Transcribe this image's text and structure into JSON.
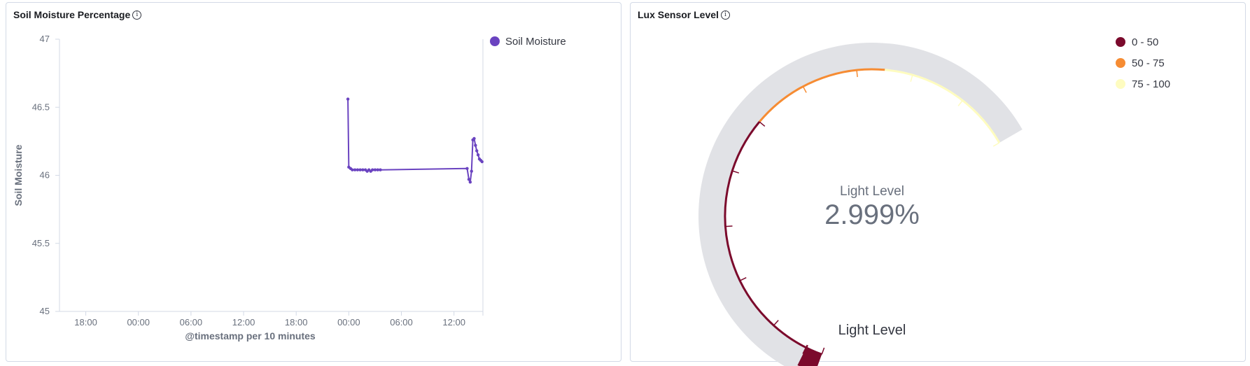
{
  "panels": {
    "soil": {
      "title": "Soil Moisture Percentage",
      "info_icon": "info-icon"
    },
    "lux": {
      "title": "Lux Sensor Level",
      "info_icon": "info-icon"
    }
  },
  "chart_data": [
    {
      "type": "line",
      "title": "Soil Moisture Percentage",
      "xlabel": "@timestamp per 10 minutes",
      "ylabel": "Soil Moisture",
      "ylim": [
        45,
        47
      ],
      "y_ticks": [
        "45",
        "45.5",
        "46",
        "46.5",
        "47"
      ],
      "x_ticks": [
        "18:00",
        "00:00",
        "06:00",
        "12:00",
        "18:00",
        "00:00",
        "06:00",
        "12:00"
      ],
      "x_tick_hours": [
        0,
        6,
        12,
        18,
        24,
        30,
        36,
        42
      ],
      "xlim_hours": [
        -3,
        45.3
      ],
      "grid": false,
      "legend_position": "right",
      "series": [
        {
          "name": "Soil Moisture",
          "color": "#6a43c0",
          "points": [
            [
              29.9,
              46.56
            ],
            [
              30.0,
              46.06
            ],
            [
              30.2,
              46.05
            ],
            [
              30.4,
              46.04
            ],
            [
              30.7,
              46.04
            ],
            [
              31.0,
              46.04
            ],
            [
              31.3,
              46.04
            ],
            [
              31.6,
              46.04
            ],
            [
              31.9,
              46.04
            ],
            [
              32.1,
              46.03
            ],
            [
              32.3,
              46.04
            ],
            [
              32.5,
              46.03
            ],
            [
              32.7,
              46.04
            ],
            [
              33.0,
              46.04
            ],
            [
              33.3,
              46.04
            ],
            [
              33.6,
              46.04
            ],
            [
              43.5,
              46.05
            ],
            [
              43.7,
              45.97
            ],
            [
              43.85,
              45.95
            ],
            [
              44.0,
              46.03
            ],
            [
              44.15,
              46.26
            ],
            [
              44.3,
              46.27
            ],
            [
              44.45,
              46.22
            ],
            [
              44.6,
              46.18
            ],
            [
              44.75,
              46.15
            ],
            [
              44.9,
              46.12
            ],
            [
              45.05,
              46.11
            ],
            [
              45.2,
              46.1
            ]
          ]
        }
      ]
    },
    {
      "type": "gauge",
      "title": "Lux Sensor Level",
      "label": "Light Level",
      "value_text": "2.999%",
      "value": 2.999,
      "range": [
        0,
        100
      ],
      "bottom_label": "Light Level",
      "legend_position": "top-right",
      "bands": [
        {
          "label": "0 - 50",
          "from": 0,
          "to": 50,
          "color": "#7b0a2c"
        },
        {
          "label": "50 - 75",
          "from": 50,
          "to": 75,
          "color": "#f68c33"
        },
        {
          "label": "75 - 100",
          "from": 75,
          "to": 100,
          "color": "#fefcc0"
        }
      ],
      "track_color": "#e1e2e6"
    }
  ]
}
